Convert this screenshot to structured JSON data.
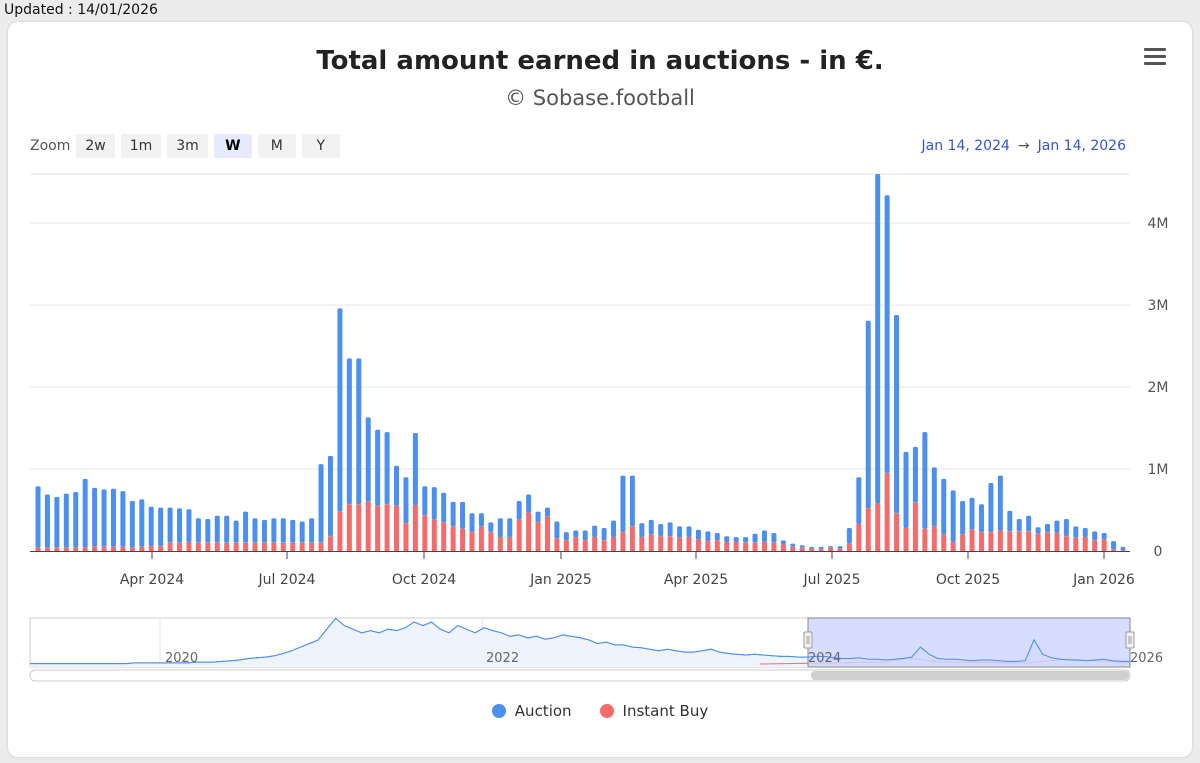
{
  "updated_label": "Updated : 14/01/2026",
  "header": {
    "title": "Total amount earned in auctions - in €.",
    "subtitle": "© Sobase.football"
  },
  "zoom": {
    "label": "Zoom",
    "buttons": [
      "2w",
      "1m",
      "3m",
      "W",
      "M",
      "Y"
    ],
    "active": "W"
  },
  "range": {
    "from": "Jan 14, 2024",
    "arrow": "→",
    "to": "Jan 14, 2026"
  },
  "colors": {
    "auction": "#4b8ff0",
    "instant": "#f56a6a",
    "navigator_fill": "#ccd4ff"
  },
  "legend": {
    "auction_label": "Auction",
    "instant_label": "Instant Buy"
  },
  "navigator": {
    "labels": [
      "2020",
      "2022",
      "2024",
      "2026"
    ]
  },
  "chart_data": {
    "type": "bar",
    "stacked": true,
    "title": "Total amount earned in auctions - in €.",
    "x_tick_labels": [
      "Apr 2024",
      "Jul 2024",
      "Oct 2024",
      "Jan 2025",
      "Apr 2025",
      "Jul 2025",
      "Oct 2025",
      "Jan 2026"
    ],
    "y_tick_labels": [
      "0",
      "1M",
      "2M",
      "3M",
      "4M"
    ],
    "ylim": [
      0,
      4600000
    ],
    "x_range": [
      "2024-01-14",
      "2026-01-14"
    ],
    "bar_interval": "weekly",
    "series": [
      {
        "name": "Auction",
        "values": [
          750000,
          650000,
          620000,
          660000,
          680000,
          840000,
          720000,
          700000,
          710000,
          680000,
          570000,
          580000,
          480000,
          470000,
          430000,
          420000,
          400000,
          300000,
          290000,
          330000,
          330000,
          270000,
          380000,
          300000,
          280000,
          300000,
          300000,
          280000,
          260000,
          300000,
          960000,
          980000,
          2480000,
          1780000,
          1780000,
          1030000,
          930000,
          880000,
          490000,
          560000,
          880000,
          360000,
          400000,
          360000,
          300000,
          330000,
          230000,
          160000,
          120000,
          230000,
          230000,
          230000,
          220000,
          130000,
          110000,
          210000,
          100000,
          80000,
          120000,
          140000,
          150000,
          200000,
          690000,
          620000,
          170000,
          180000,
          150000,
          170000,
          140000,
          130000,
          120000,
          120000,
          90000,
          70000,
          60000,
          70000,
          110000,
          140000,
          120000,
          50000,
          40000,
          30000,
          20000,
          30000,
          20000,
          30000,
          190000,
          570000,
          2290000,
          4020000,
          3390000,
          2420000,
          930000,
          680000,
          1180000,
          720000,
          680000,
          630000,
          410000,
          390000,
          340000,
          600000,
          670000,
          250000,
          150000,
          190000,
          80000,
          100000,
          150000,
          210000,
          140000,
          110000,
          110000,
          80000,
          100000,
          40000
        ],
        "instant_buy_values": [
          40000,
          40000,
          40000,
          40000,
          40000,
          40000,
          50000,
          50000,
          50000,
          50000,
          40000,
          50000,
          60000,
          60000,
          100000,
          100000,
          110000,
          100000,
          100000,
          100000,
          100000,
          100000,
          100000,
          100000,
          100000,
          100000,
          100000,
          100000,
          100000,
          100000,
          100000,
          180000,
          480000,
          570000,
          570000,
          600000,
          550000,
          570000,
          550000,
          340000,
          560000,
          430000,
          380000,
          350000,
          300000,
          270000,
          230000,
          300000,
          230000,
          170000,
          170000,
          380000,
          470000,
          350000,
          420000,
          150000,
          130000,
          170000,
          130000,
          170000,
          130000,
          170000,
          230000,
          300000,
          170000,
          200000,
          180000,
          180000,
          160000,
          170000,
          140000,
          120000,
          130000,
          110000,
          110000,
          100000,
          100000,
          110000,
          100000,
          80000,
          50000,
          40000,
          30000,
          20000,
          40000,
          30000,
          90000,
          330000,
          520000,
          580000,
          950000,
          460000,
          280000,
          590000,
          270000,
          300000,
          200000,
          110000,
          200000,
          260000,
          230000,
          230000,
          250000,
          240000,
          240000,
          240000,
          210000,
          230000,
          220000,
          180000,
          160000,
          170000,
          130000,
          140000,
          20000,
          10000
        ]
      },
      {
        "name": "Instant Buy",
        "values": [
          40000,
          40000,
          40000,
          40000,
          40000,
          40000,
          50000,
          50000,
          50000,
          50000,
          40000,
          50000,
          60000,
          60000,
          100000,
          100000,
          110000,
          100000,
          100000,
          100000,
          100000,
          100000,
          100000,
          100000,
          100000,
          100000,
          100000,
          100000,
          100000,
          100000,
          100000,
          180000,
          480000,
          570000,
          570000,
          600000,
          550000,
          570000,
          550000,
          340000,
          560000,
          430000,
          380000,
          350000,
          300000,
          270000,
          230000,
          300000,
          230000,
          170000,
          170000,
          380000,
          470000,
          350000,
          420000,
          150000,
          130000,
          170000,
          130000,
          170000,
          130000,
          170000,
          230000,
          300000,
          170000,
          200000,
          180000,
          180000,
          160000,
          170000,
          140000,
          120000,
          130000,
          110000,
          110000,
          100000,
          100000,
          110000,
          100000,
          80000,
          50000,
          40000,
          30000,
          20000,
          40000,
          30000,
          90000,
          330000,
          520000,
          580000,
          950000,
          460000,
          280000,
          590000,
          270000,
          300000,
          200000,
          110000,
          200000,
          260000,
          230000,
          230000,
          250000,
          240000,
          240000,
          240000,
          210000,
          230000,
          220000,
          180000,
          160000,
          170000,
          130000,
          140000,
          20000,
          10000
        ]
      }
    ],
    "legend_position": "bottom-center",
    "grid": true
  }
}
